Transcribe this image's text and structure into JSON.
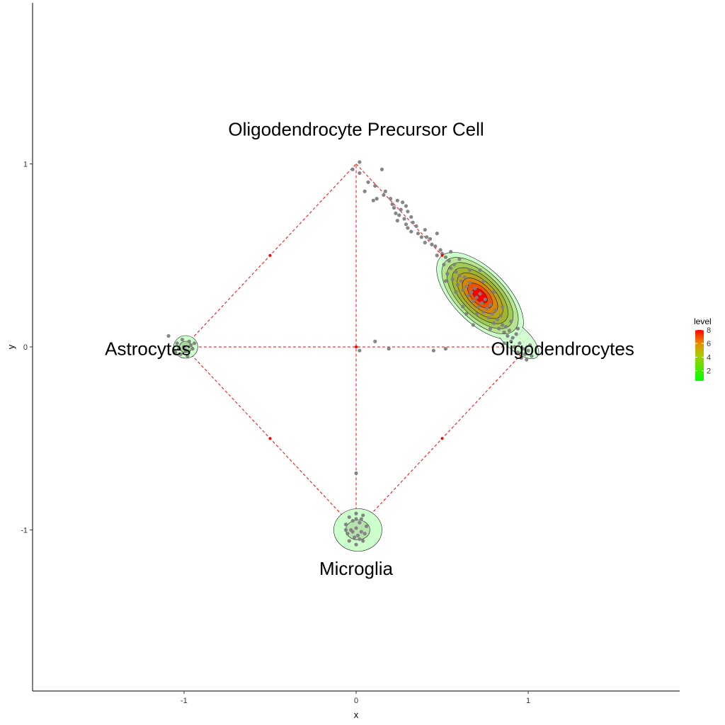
{
  "chart_data": {
    "type": "scatter",
    "title": "",
    "xlabel": "x",
    "ylabel": "y",
    "xlim": [
      -1.88,
      1.88
    ],
    "ylim": [
      -1.88,
      1.88
    ],
    "x_ticks": [
      -1,
      0,
      1
    ],
    "y_ticks": [
      -1,
      0,
      1
    ],
    "x_tick_labels": [
      "-1",
      "0",
      "1"
    ],
    "y_tick_labels": [
      "-1",
      "0",
      "1"
    ],
    "grid": false,
    "corner_labels": [
      {
        "name": "Oligodendrocyte Precursor Cell",
        "x": 0,
        "y": 1.19
      },
      {
        "name": "Astrocytes",
        "x": -1.21,
        "y": -0.01
      },
      {
        "name": "Oligodendrocytes",
        "x": 1.2,
        "y": -0.01
      },
      {
        "name": "Microglia",
        "x": 0,
        "y": -1.21
      }
    ],
    "guide_lines": {
      "color": "#ff0000",
      "dashed": true,
      "segments": [
        [
          [
            0,
            1
          ],
          [
            1,
            0
          ]
        ],
        [
          [
            1,
            0
          ],
          [
            0,
            -1
          ]
        ],
        [
          [
            0,
            -1
          ],
          [
            -1,
            0
          ]
        ],
        [
          [
            -1,
            0
          ],
          [
            0,
            1
          ]
        ],
        [
          [
            -1,
            0
          ],
          [
            1,
            0
          ]
        ],
        [
          [
            0,
            -1
          ],
          [
            0,
            1
          ]
        ]
      ],
      "points": [
        [
          0.5,
          0.5
        ],
        [
          0.5,
          -0.5
        ],
        [
          -0.5,
          -0.5
        ],
        [
          -0.5,
          0.5
        ],
        [
          0,
          0
        ]
      ]
    },
    "point_color": "#7f7f7f",
    "points": [
      [
        0.02,
        1.01
      ],
      [
        -0.02,
        0.97
      ],
      [
        0.02,
        0.95
      ],
      [
        0.15,
        0.97
      ],
      [
        0.07,
        0.9
      ],
      [
        0.11,
        0.88
      ],
      [
        0.05,
        0.85
      ],
      [
        0.17,
        0.85
      ],
      [
        0.16,
        0.83
      ],
      [
        0.12,
        0.81
      ],
      [
        0.2,
        0.81
      ],
      [
        0.1,
        0.8
      ],
      [
        0.21,
        0.78
      ],
      [
        0.24,
        0.8
      ],
      [
        0.27,
        0.79
      ],
      [
        0.22,
        0.76
      ],
      [
        0.26,
        0.75
      ],
      [
        0.29,
        0.77
      ],
      [
        0.23,
        0.73
      ],
      [
        0.3,
        0.74
      ],
      [
        0.25,
        0.72
      ],
      [
        0.28,
        0.7
      ],
      [
        0.32,
        0.71
      ],
      [
        0.24,
        0.69
      ],
      [
        0.29,
        0.67
      ],
      [
        0.33,
        0.68
      ],
      [
        0.3,
        0.65
      ],
      [
        0.35,
        0.66
      ],
      [
        0.32,
        0.63
      ],
      [
        0.36,
        0.62
      ],
      [
        0.4,
        0.64
      ],
      [
        0.38,
        0.6
      ],
      [
        0.41,
        0.6
      ],
      [
        0.43,
        0.59
      ],
      [
        0.4,
        0.57
      ],
      [
        0.44,
        0.56
      ],
      [
        0.47,
        0.62
      ],
      [
        0.46,
        0.55
      ],
      [
        0.49,
        0.53
      ],
      [
        0.47,
        0.5
      ],
      [
        0.5,
        0.51
      ],
      [
        0.52,
        0.49
      ],
      [
        0.54,
        0.47
      ],
      [
        0.51,
        0.45
      ],
      [
        0.55,
        0.43
      ],
      [
        0.57,
        0.45
      ],
      [
        0.53,
        0.4
      ],
      [
        0.58,
        0.41
      ],
      [
        0.6,
        0.39
      ],
      [
        0.56,
        0.37
      ],
      [
        0.61,
        0.36
      ],
      [
        0.63,
        0.38
      ],
      [
        0.59,
        0.34
      ],
      [
        0.64,
        0.33
      ],
      [
        0.66,
        0.35
      ],
      [
        0.62,
        0.31
      ],
      [
        0.67,
        0.3
      ],
      [
        0.69,
        0.32
      ],
      [
        0.65,
        0.28
      ],
      [
        0.7,
        0.27
      ],
      [
        0.72,
        0.29
      ],
      [
        0.68,
        0.25
      ],
      [
        0.73,
        0.24
      ],
      [
        0.75,
        0.26
      ],
      [
        0.71,
        0.22
      ],
      [
        0.76,
        0.21
      ],
      [
        0.78,
        0.23
      ],
      [
        0.74,
        0.19
      ],
      [
        0.79,
        0.18
      ],
      [
        0.81,
        0.2
      ],
      [
        0.77,
        0.16
      ],
      [
        0.82,
        0.15
      ],
      [
        0.84,
        0.17
      ],
      [
        0.8,
        0.13
      ],
      [
        0.85,
        0.12
      ],
      [
        0.83,
        0.1
      ],
      [
        0.87,
        0.11
      ],
      [
        0.86,
        0.08
      ],
      [
        0.89,
        0.09
      ],
      [
        0.88,
        0.06
      ],
      [
        0.91,
        0.05
      ],
      [
        0.93,
        0.07
      ],
      [
        0.9,
        0.03
      ],
      [
        0.95,
        0.02
      ],
      [
        0.92,
        0.0
      ],
      [
        0.97,
        -0.01
      ],
      [
        0.94,
        -0.03
      ],
      [
        0.98,
        -0.04
      ],
      [
        1.0,
        -0.02
      ],
      [
        0.96,
        -0.06
      ],
      [
        1.02,
        -0.05
      ],
      [
        0.99,
        -0.07
      ],
      [
        1.01,
        0.01
      ],
      [
        0.66,
        0.42
      ],
      [
        0.74,
        0.36
      ],
      [
        0.58,
        0.3
      ],
      [
        0.8,
        0.3
      ],
      [
        0.62,
        0.22
      ],
      [
        0.7,
        0.18
      ],
      [
        0.85,
        0.22
      ],
      [
        0.6,
        0.48
      ],
      [
        0.78,
        0.1
      ],
      [
        0.9,
        0.14
      ],
      [
        0.55,
        0.52
      ],
      [
        0.68,
        0.12
      ],
      [
        0.72,
        0.42
      ],
      [
        0.64,
        0.18
      ],
      [
        0.86,
        0.02
      ],
      [
        0.94,
        0.1
      ],
      [
        0.52,
        0.36
      ],
      [
        -1.09,
        0.06
      ],
      [
        -1.04,
        0.02
      ],
      [
        -1.01,
        0.04
      ],
      [
        -0.97,
        0.03
      ],
      [
        -1.03,
        -0.01
      ],
      [
        -0.99,
        -0.02
      ],
      [
        -0.95,
        -0.01
      ],
      [
        -1.02,
        -0.04
      ],
      [
        -0.98,
        -0.05
      ],
      [
        -1.0,
        0.0
      ],
      [
        -0.96,
        0.01
      ],
      [
        -1.05,
        -0.03
      ],
      [
        -0.94,
        0.02
      ],
      [
        0.0,
        -0.91
      ],
      [
        -0.04,
        -0.93
      ],
      [
        0.04,
        -0.92
      ],
      [
        -0.02,
        -0.95
      ],
      [
        0.02,
        -0.96
      ],
      [
        -0.06,
        -0.97
      ],
      [
        0.06,
        -0.98
      ],
      [
        0.0,
        -0.99
      ],
      [
        -0.03,
        -1.0
      ],
      [
        0.03,
        -1.01
      ],
      [
        -0.05,
        -1.02
      ],
      [
        0.05,
        -1.02
      ],
      [
        -0.01,
        -1.04
      ],
      [
        0.02,
        -1.05
      ],
      [
        -0.04,
        -1.06
      ],
      [
        0.04,
        -1.06
      ],
      [
        0.0,
        -1.08
      ],
      [
        -0.02,
        -1.01
      ],
      [
        0.01,
        -1.03
      ],
      [
        -0.06,
        -1.0
      ],
      [
        0.03,
        -0.94
      ],
      [
        0.0,
        -0.69
      ],
      [
        0.0,
        -0.94
      ],
      [
        0.11,
        0.03
      ],
      [
        0.02,
        -0.02
      ],
      [
        0.19,
        -0.01
      ],
      [
        0.45,
        -0.02
      ],
      [
        0.52,
        -0.01
      ]
    ],
    "density": {
      "peak": {
        "x": 0.72,
        "y": 0.28,
        "level": 8
      },
      "contour_levels": [
        1,
        2,
        3,
        4,
        5,
        6,
        7,
        8
      ],
      "fill_low": "#ccffcc",
      "fill_high": "#ff0000"
    },
    "legend": {
      "title": "level",
      "placement": "right",
      "labels": [
        "8",
        "6",
        "4",
        "2"
      ],
      "values": [
        8,
        6,
        4,
        2
      ],
      "min": 0.5,
      "max": 8,
      "color_low": "#00ff00",
      "color_high": "#ff0000"
    }
  }
}
